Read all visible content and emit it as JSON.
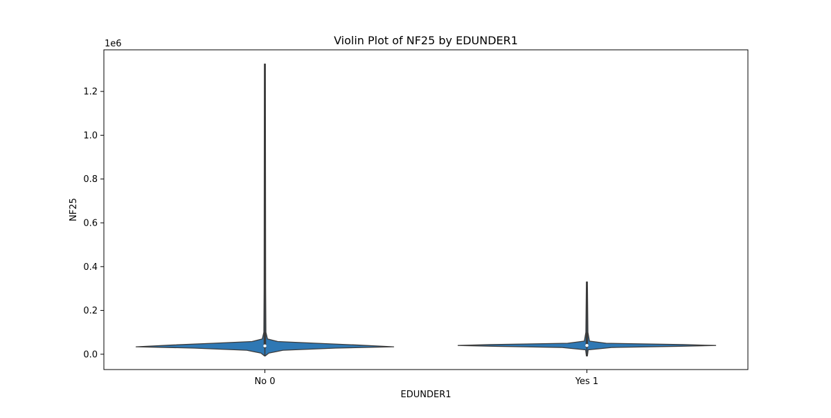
{
  "chart_data": {
    "type": "violin",
    "title": "Violin Plot of NF25 by EDUNDER1",
    "xlabel": "EDUNDER1",
    "ylabel": "NF25",
    "y_offset_text": "1e6",
    "categories": [
      "No 0",
      "Yes 1"
    ],
    "ylim": [
      -0.07,
      1.39
    ],
    "yticks": [
      0.0,
      0.2,
      0.4,
      0.6,
      0.8,
      1.0,
      1.2
    ],
    "ytick_labels": [
      "0.0",
      "0.2",
      "0.4",
      "0.6",
      "0.8",
      "1.0",
      "1.2"
    ],
    "grid": false,
    "violin_color": "#2f78b4",
    "edge_color": "#3b3b3b",
    "groups": [
      {
        "category": "No 0",
        "min": -0.008,
        "q1": 0.028,
        "median": 0.038,
        "q3": 0.05,
        "max": 1.325,
        "whisker_high": 0.1,
        "density": [
          [
            -0.008,
            0.0
          ],
          [
            0.005,
            0.03
          ],
          [
            0.018,
            0.14
          ],
          [
            0.028,
            0.55
          ],
          [
            0.034,
            1.0
          ],
          [
            0.042,
            0.72
          ],
          [
            0.05,
            0.4
          ],
          [
            0.058,
            0.1
          ],
          [
            0.07,
            0.02
          ],
          [
            0.1,
            0.008
          ],
          [
            0.3,
            0.006
          ],
          [
            0.8,
            0.005
          ],
          [
            1.325,
            0.004
          ]
        ]
      },
      {
        "category": "Yes 1",
        "min": -0.008,
        "q1": 0.03,
        "median": 0.04,
        "q3": 0.045,
        "max": 0.33,
        "whisker_high": 0.1,
        "density": [
          [
            -0.008,
            0.004
          ],
          [
            0.02,
            0.01
          ],
          [
            0.031,
            0.2
          ],
          [
            0.036,
            0.7
          ],
          [
            0.04,
            1.0
          ],
          [
            0.044,
            0.75
          ],
          [
            0.05,
            0.15
          ],
          [
            0.06,
            0.02
          ],
          [
            0.1,
            0.008
          ],
          [
            0.33,
            0.004
          ]
        ]
      }
    ]
  }
}
